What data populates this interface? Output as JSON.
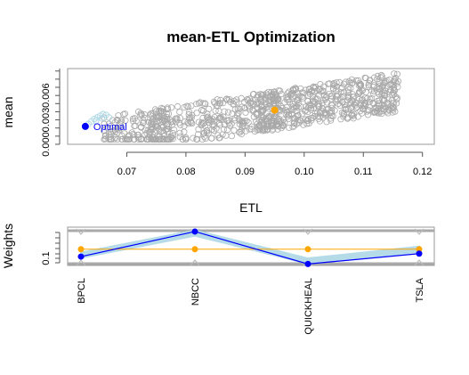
{
  "chart_data": [
    {
      "type": "scatter",
      "title": "mean-ETL Optimization",
      "xlabel": "ETL",
      "ylabel": "mean",
      "xlim": [
        0.06,
        0.122
      ],
      "ylim": [
        0.0,
        0.0093
      ],
      "xticks": [
        "0.07",
        "0.08",
        "0.09",
        "0.10",
        "0.11",
        "0.12"
      ],
      "xtick_values": [
        0.07,
        0.08,
        0.09,
        0.1,
        0.11,
        0.12
      ],
      "yticks": [
        "0.000",
        "0.003",
        "0.006"
      ],
      "ytick_values": [
        0.0,
        0.003,
        0.006
      ],
      "grid": false,
      "series": [
        {
          "color": "#a9a9a9",
          "marker": "open-circle",
          "count": 950,
          "description_range": {
            "x": [
              0.063,
              0.12
            ],
            "y": [
              0.0005,
              0.0092
            ]
          }
        },
        {
          "color": "#add8e6",
          "marker": "open-circle",
          "points": [
            [
              0.0635,
              0.0025
            ],
            [
              0.064,
              0.0028
            ],
            [
              0.0645,
              0.0031
            ],
            [
              0.065,
              0.0033
            ],
            [
              0.0655,
              0.0035
            ],
            [
              0.066,
              0.0037
            ],
            [
              0.0665,
              0.0036
            ],
            [
              0.067,
              0.0033
            ],
            [
              0.0648,
              0.0029
            ],
            [
              0.0658,
              0.0032
            ]
          ]
        }
      ],
      "highlights": [
        {
          "label": "Optimal",
          "x": 0.063,
          "y": 0.0022,
          "color": "#0000ff"
        },
        {
          "label": "",
          "x": 0.095,
          "y": 0.0042,
          "color": "#ffa500"
        }
      ]
    },
    {
      "type": "line",
      "ylabel": "Weights",
      "categories": [
        "BPCL",
        "NBCC",
        "QUICKHEAL",
        "TSLA"
      ],
      "yticks": [
        "0.1"
      ],
      "ytick_values": [
        0.1
      ],
      "ylim": [
        0.07,
        0.2
      ],
      "series": [
        {
          "color": "#add8e6",
          "values": [
            0.105,
            0.18,
            0.085,
            0.125
          ],
          "note_band": [
            0.095,
            0.19
          ]
        },
        {
          "color": "#0000ff",
          "values": [
            0.1,
            0.185,
            0.075,
            0.11
          ]
        },
        {
          "color": "#ffa500",
          "values": [
            0.125,
            0.125,
            0.125,
            0.125
          ]
        }
      ],
      "bounds": {
        "lower": 0.07,
        "upper": 0.2,
        "color": "#a9a9a9"
      }
    }
  ]
}
